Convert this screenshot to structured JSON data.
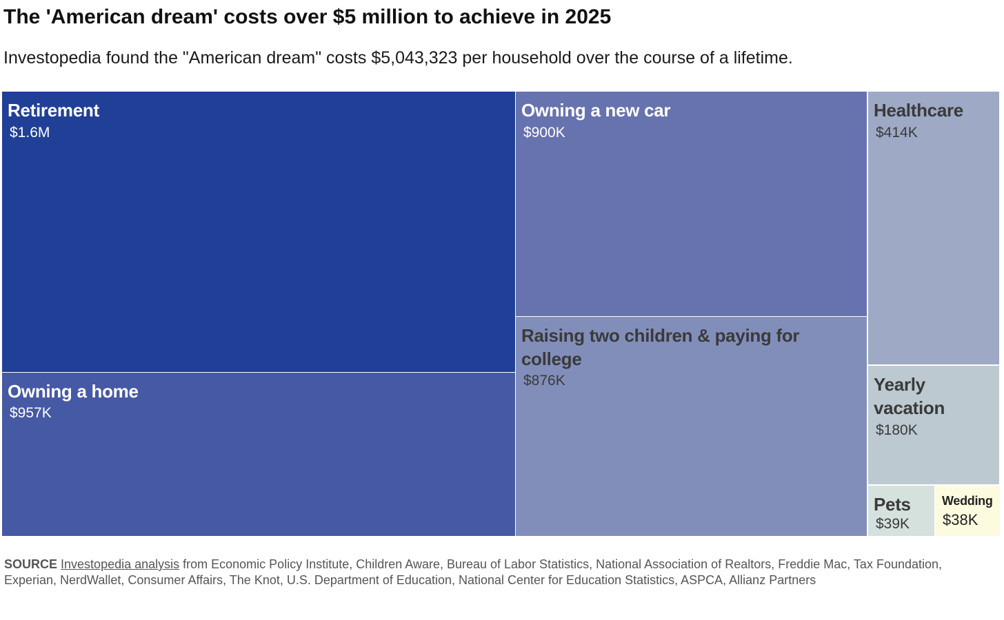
{
  "chart_data": {
    "type": "treemap",
    "title": "The 'American dream' costs over $5 million to achieve in 2025",
    "subtitle": "Investopedia found the \"American dream\" costs $5,043,323 per household over the course of a lifetime.",
    "total": 5043323,
    "series": [
      {
        "name": "Retirement",
        "value": 1600000,
        "label": "$1.6M",
        "color": "#203f97",
        "text_color": "#ffffff"
      },
      {
        "name": "Owning a home",
        "value": 957000,
        "label": "$957K",
        "color": "#4659a4",
        "text_color": "#ffffff"
      },
      {
        "name": "Owning a new car",
        "value": 900000,
        "label": "$900K",
        "color": "#6773ae",
        "text_color": "#ffffff"
      },
      {
        "name": "Raising two children & paying for college",
        "value": 876000,
        "label": "$876K",
        "color": "#828eba",
        "text_color": "#3a3a3a"
      },
      {
        "name": "Healthcare",
        "value": 414000,
        "label": "$414K",
        "color": "#9ea9c5",
        "text_color": "#3a3a3a"
      },
      {
        "name": "Yearly vacation",
        "value": 180000,
        "label": "$180K",
        "color": "#bcc9d0",
        "text_color": "#3a3a3a"
      },
      {
        "name": "Pets",
        "value": 39000,
        "label": "$39K",
        "color": "#d4e1dc",
        "text_color": "#3a3a3a"
      },
      {
        "name": "Wedding",
        "value": 38000,
        "label": "$38K",
        "color": "#fcfbdf",
        "text_color": "#222222"
      }
    ]
  },
  "source": {
    "label": "SOURCE",
    "link_text": "Investopedia analysis",
    "text": " from Economic Policy Institute, Children Aware, Bureau of Labor Statistics, National Association of Realtors, Freddie Mac, Tax Foundation, Experian, NerdWallet, Consumer Affairs, The Knot, U.S. Department of Education, National Center for Education Statistics, ASPCA, Allianz Partners"
  }
}
